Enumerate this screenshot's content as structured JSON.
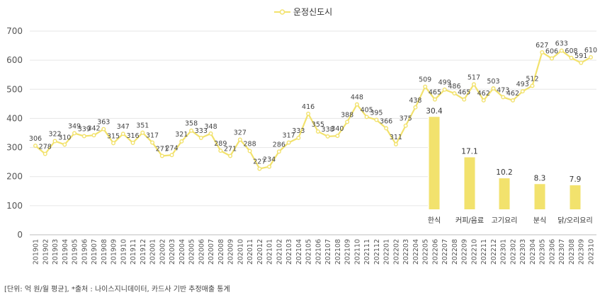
{
  "chart_data": [
    {
      "type": "line",
      "title": "",
      "legend": {
        "position": "top-center",
        "entries": [
          "운정신도시"
        ]
      },
      "xlabel": "",
      "ylabel": "",
      "ylim": [
        0,
        700
      ],
      "yticks": [
        0,
        100,
        200,
        300,
        400,
        500,
        600,
        700
      ],
      "grid": true,
      "colors": {
        "series": "#F2E26D",
        "marker_fill": "#ffffff"
      },
      "x": [
        "201901",
        "201902",
        "201903",
        "201904",
        "201905",
        "201906",
        "201907",
        "201908",
        "201909",
        "201910",
        "201911",
        "201912",
        "202001",
        "202002",
        "202003",
        "202004",
        "202005",
        "202006",
        "202007",
        "202008",
        "202009",
        "202010",
        "202011",
        "202012",
        "202101",
        "202102",
        "202103",
        "202104",
        "202105",
        "202106",
        "202107",
        "202108",
        "202109",
        "202110",
        "202111",
        "202112",
        "202201",
        "202202",
        "202203",
        "202204",
        "202205",
        "202206",
        "202207",
        "202208",
        "202209",
        "202210",
        "202211",
        "202212",
        "202301",
        "202302",
        "202303",
        "202304",
        "202305",
        "202306",
        "202307",
        "202308",
        "202309",
        "202310"
      ],
      "series": [
        {
          "name": "운정신도시",
          "values": [
            306,
            278,
            322,
            310,
            349,
            339,
            342,
            363,
            315,
            347,
            316,
            351,
            317,
            271,
            274,
            321,
            358,
            333,
            348,
            289,
            271,
            327,
            288,
            227,
            234,
            286,
            317,
            333,
            416,
            355,
            338,
            340,
            388,
            448,
            405,
            395,
            366,
            311,
            375,
            438,
            509,
            465,
            499,
            486,
            465,
            517,
            462,
            503,
            473,
            462,
            493,
            512,
            627,
            606,
            633,
            608,
            591,
            610
          ]
        }
      ]
    },
    {
      "type": "bar",
      "title": "",
      "colors": {
        "bar": "#F2E26D"
      },
      "categories": [
        "한식",
        "커피/음료",
        "고기요리",
        "분식",
        "닭/오리요리"
      ],
      "values": [
        30.4,
        17.1,
        10.2,
        8.3,
        7.9
      ],
      "value_labels": [
        "30.4",
        "17.1",
        "10.2",
        "8.3",
        "7.9"
      ]
    }
  ],
  "footnote": "[단위: 억 원/월 평균], *출처 : 나이스지니데이터, 카드사 기반 추정매출 통계"
}
